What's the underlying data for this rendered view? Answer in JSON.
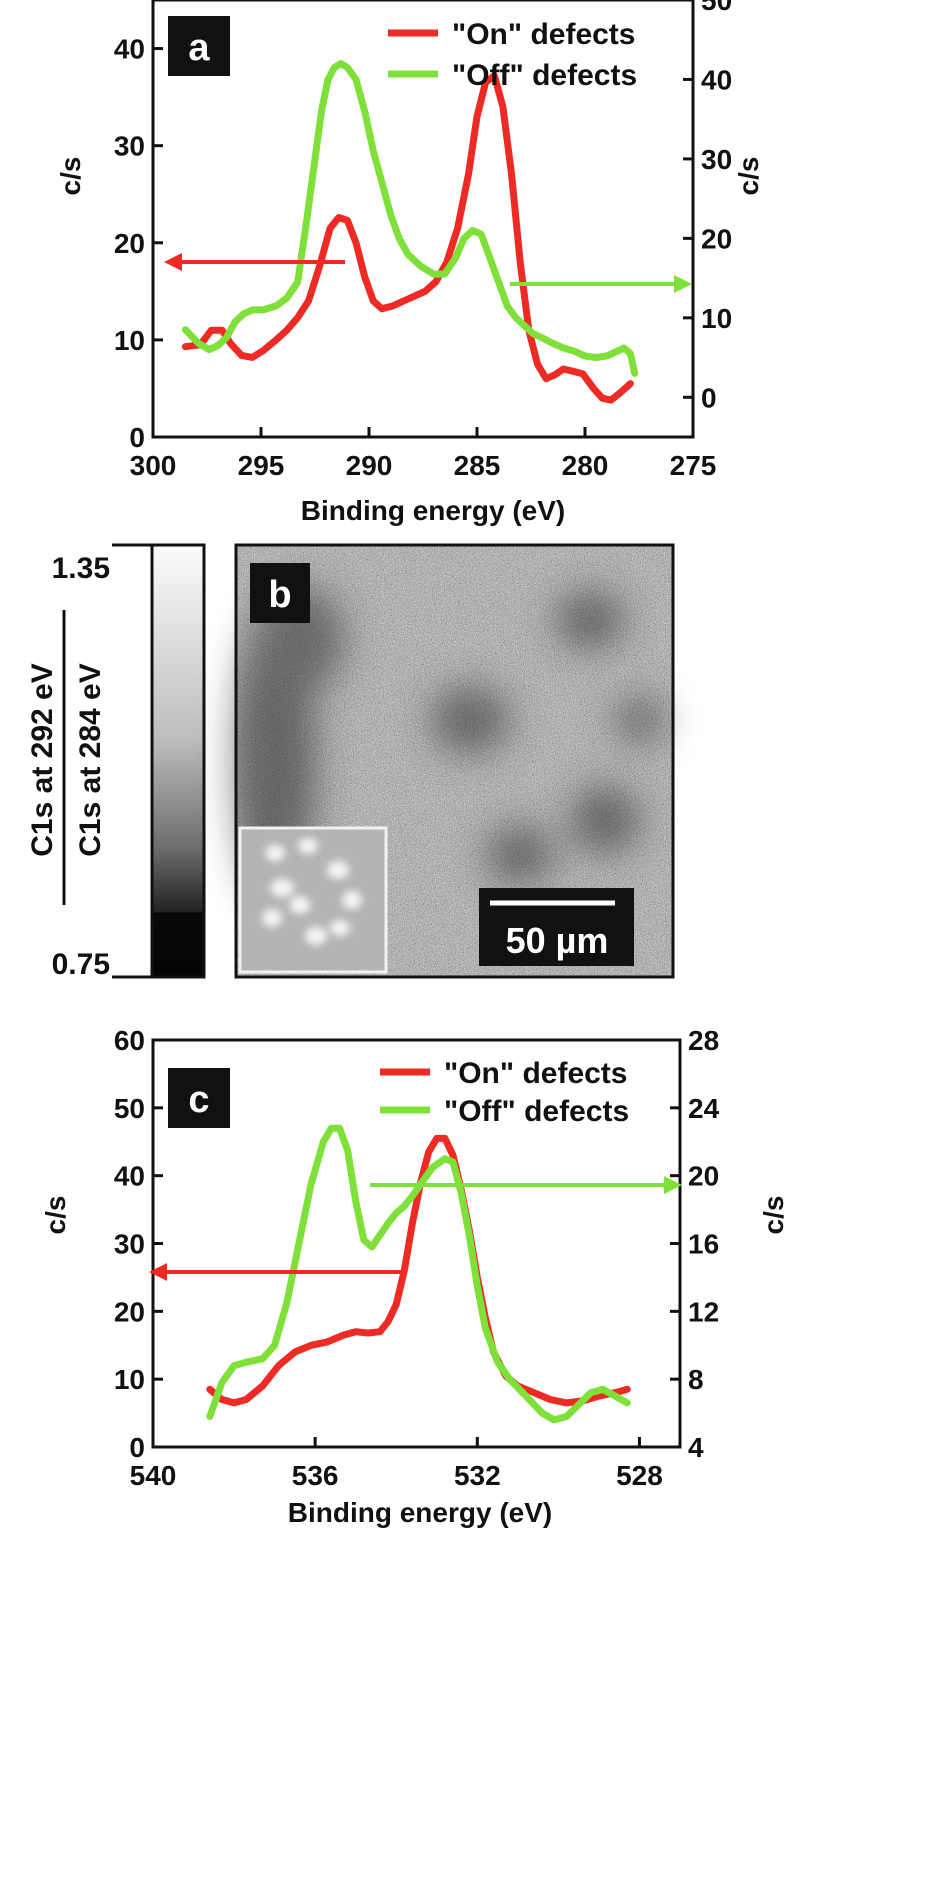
{
  "chart_data": [
    {
      "panel": "a",
      "type": "line",
      "xlabel": "Binding energy (eV)",
      "ylabel_left": "c/s",
      "ylabel_right": "c/s",
      "xlim": [
        300,
        275
      ],
      "ylim_left": [
        0,
        45
      ],
      "ylim_right": [
        -5,
        50
      ],
      "xticks": [
        "300",
        "295",
        "290",
        "285",
        "280",
        "275"
      ],
      "yticks_left": [
        "0",
        "10",
        "20",
        "30",
        "40"
      ],
      "yticks_right": [
        "0",
        "10",
        "20",
        "30",
        "40",
        "50"
      ],
      "colors": {
        "on": "#ee2a24",
        "off": "#7fe03a"
      },
      "series": [
        {
          "name": "\"On\" defects",
          "axis": "left",
          "x": [
            298.5,
            297.8,
            297.3,
            296.8,
            296.4,
            295.9,
            295.4,
            294.9,
            294.3,
            293.8,
            293.3,
            292.8,
            292.3,
            291.8,
            291.4,
            291.0,
            290.6,
            290.2,
            289.8,
            289.4,
            288.9,
            288.4,
            287.9,
            287.4,
            286.9,
            286.4,
            285.9,
            285.4,
            285.0,
            284.6,
            284.2,
            283.8,
            283.4,
            283.0,
            282.6,
            282.2,
            281.8,
            281.4,
            281.0,
            280.6,
            280.1,
            279.6,
            279.2,
            278.8,
            278.4,
            277.9
          ],
          "y": [
            9.3,
            9.5,
            11.0,
            11.0,
            9.6,
            8.4,
            8.2,
            8.9,
            10.0,
            11.0,
            12.3,
            14.0,
            17.5,
            21.5,
            22.6,
            22.3,
            20.0,
            16.5,
            14.0,
            13.2,
            13.5,
            14.0,
            14.5,
            15.0,
            16.0,
            18.0,
            21.5,
            27.0,
            33.0,
            36.5,
            37.2,
            34.0,
            27.0,
            18.0,
            11.0,
            7.5,
            6.0,
            6.4,
            7.0,
            6.8,
            6.5,
            5.0,
            4.0,
            3.8,
            4.5,
            5.5
          ]
        },
        {
          "name": "\"Off\" defects",
          "axis": "right",
          "x": [
            298.5,
            297.9,
            297.4,
            297.0,
            296.6,
            296.2,
            295.8,
            295.4,
            294.9,
            294.3,
            293.8,
            293.3,
            292.9,
            292.5,
            292.2,
            291.9,
            291.6,
            291.3,
            291.0,
            290.6,
            290.2,
            289.8,
            289.4,
            289.0,
            288.6,
            288.2,
            287.6,
            287.0,
            286.5,
            286.0,
            285.6,
            285.2,
            284.8,
            284.4,
            284.0,
            283.6,
            283.2,
            282.8,
            282.4,
            282.0,
            281.5,
            281.0,
            280.5,
            280.0,
            279.5,
            279.0,
            278.5,
            278.2,
            277.9,
            277.7
          ],
          "y": [
            8.5,
            6.8,
            6.0,
            6.5,
            7.5,
            9.5,
            10.5,
            11.0,
            11.0,
            11.5,
            12.5,
            14.5,
            22.0,
            30.0,
            36.0,
            40.0,
            41.5,
            42.0,
            41.5,
            40.0,
            36.0,
            31.0,
            27.0,
            23.0,
            20.0,
            18.0,
            16.5,
            15.5,
            15.5,
            17.5,
            20.0,
            21.0,
            20.5,
            17.5,
            14.5,
            11.5,
            10.0,
            9.0,
            8.0,
            7.5,
            6.8,
            6.2,
            5.8,
            5.2,
            5.0,
            5.2,
            5.8,
            6.2,
            5.5,
            3.0
          ]
        }
      ]
    },
    {
      "panel": "c",
      "type": "line",
      "xlabel": "Binding energy (eV)",
      "ylabel_left": "c/s",
      "ylabel_right": "c/s",
      "xlim": [
        540,
        527
      ],
      "ylim_left": [
        0,
        60
      ],
      "ylim_right": [
        4,
        28
      ],
      "xticks": [
        "540",
        "536",
        "532",
        "528"
      ],
      "yticks_left": [
        "0",
        "10",
        "20",
        "30",
        "40",
        "50",
        "60"
      ],
      "yticks_right": [
        "4",
        "8",
        "12",
        "16",
        "20",
        "24",
        "28"
      ],
      "colors": {
        "on": "#ee2a24",
        "off": "#7fe03a"
      },
      "series": [
        {
          "name": "\"On\" defects",
          "axis": "left",
          "x": [
            538.6,
            538.3,
            538.0,
            537.7,
            537.3,
            536.9,
            536.5,
            536.1,
            535.7,
            535.3,
            535.0,
            534.7,
            534.4,
            534.2,
            534.0,
            533.8,
            533.6,
            533.4,
            533.2,
            533.0,
            532.8,
            532.6,
            532.4,
            532.2,
            532.0,
            531.8,
            531.6,
            531.3,
            531.0,
            530.6,
            530.2,
            529.8,
            529.4,
            529.0,
            528.6,
            528.3
          ],
          "y": [
            8.5,
            7.0,
            6.5,
            7.0,
            9.0,
            12.0,
            14.0,
            15.0,
            15.5,
            16.5,
            17.0,
            16.8,
            17.0,
            18.5,
            21.0,
            26.0,
            33.0,
            39.0,
            43.5,
            45.5,
            45.5,
            43.0,
            38.0,
            32.0,
            25.0,
            19.0,
            14.0,
            10.5,
            9.0,
            8.0,
            7.0,
            6.5,
            6.8,
            7.5,
            8.0,
            8.5
          ]
        },
        {
          "name": "\"Off\" defects",
          "axis": "right",
          "x": [
            538.6,
            538.3,
            538.0,
            537.7,
            537.3,
            537.0,
            536.7,
            536.4,
            536.1,
            535.8,
            535.6,
            535.4,
            535.2,
            535.0,
            534.8,
            534.6,
            534.4,
            534.2,
            534.0,
            533.8,
            533.6,
            533.4,
            533.1,
            532.8,
            532.6,
            532.4,
            532.2,
            532.0,
            531.8,
            531.5,
            531.2,
            530.8,
            530.4,
            530.1,
            529.8,
            529.5,
            529.2,
            528.9,
            528.6,
            528.3
          ],
          "y": [
            5.8,
            7.8,
            8.8,
            9.0,
            9.2,
            10.0,
            12.5,
            16.0,
            19.5,
            22.0,
            22.8,
            22.8,
            21.5,
            18.5,
            16.2,
            15.8,
            16.5,
            17.2,
            17.8,
            18.2,
            18.8,
            19.5,
            20.5,
            21.0,
            20.8,
            19.0,
            16.5,
            13.5,
            11.0,
            9.0,
            8.0,
            7.0,
            6.0,
            5.6,
            5.8,
            6.5,
            7.2,
            7.4,
            7.0,
            6.6
          ]
        }
      ]
    }
  ],
  "panel_a": {
    "label": "a",
    "legend": [
      "\"On\" defects",
      "\"Off\" defects"
    ],
    "xlabel": "Binding energy (eV)",
    "ylabel_left": "c/s",
    "ylabel_right": "c/s"
  },
  "panel_b": {
    "label": "b",
    "colorbar_max": "1.35",
    "colorbar_min": "0.75",
    "ratio_numerator": "C1s at 292 eV",
    "ratio_denominator": "C1s at 284 eV",
    "scalebar": "50 µm"
  },
  "panel_c": {
    "label": "c",
    "legend": [
      "\"On\" defects",
      "\"Off\" defects"
    ],
    "xlabel": "Binding energy (eV)",
    "ylabel_left": "c/s",
    "ylabel_right": "c/s"
  }
}
